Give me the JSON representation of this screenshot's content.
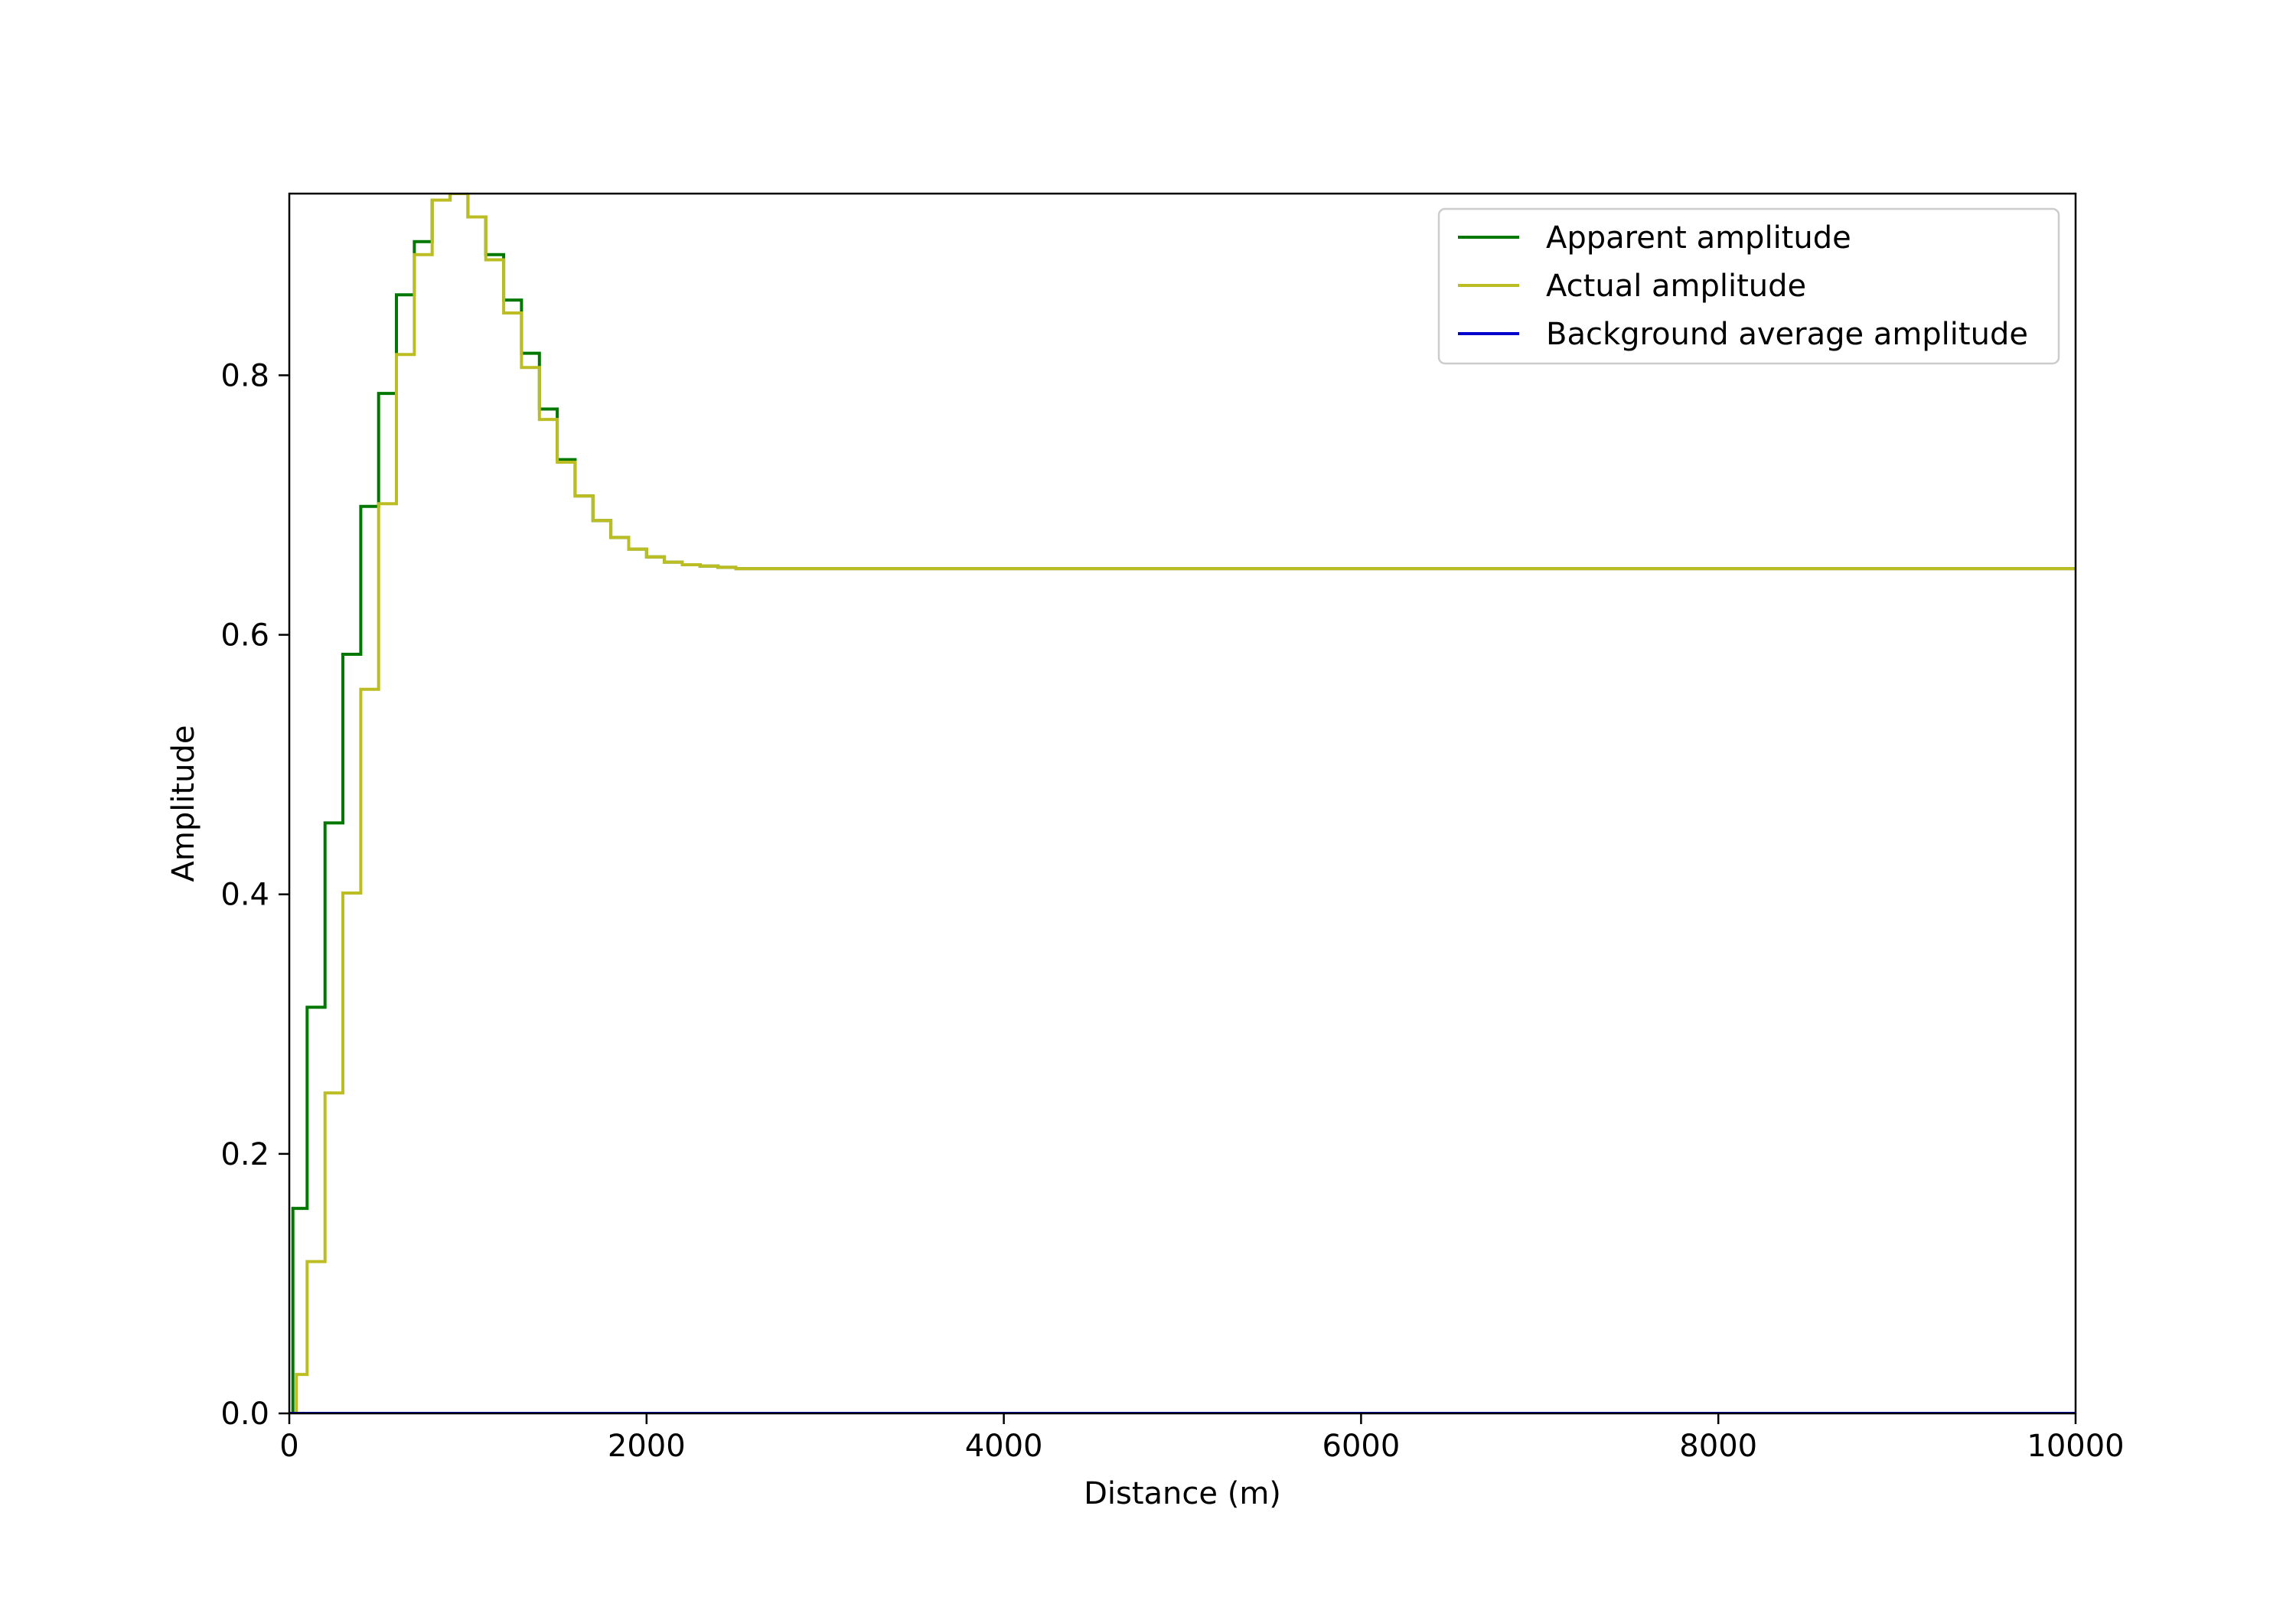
{
  "chart_data": {
    "type": "line",
    "xlabel": "Distance (m)",
    "ylabel": "Amplitude",
    "xlim": [
      0,
      10000
    ],
    "ylim": [
      0,
      0.94
    ],
    "xticks": [
      0,
      2000,
      4000,
      6000,
      8000,
      10000
    ],
    "yticks": [
      0.0,
      0.2,
      0.4,
      0.6,
      0.8
    ],
    "xtick_labels": [
      "0",
      "2000",
      "4000",
      "6000",
      "8000",
      "10000"
    ],
    "ytick_labels": [
      "0.0",
      "0.2",
      "0.4",
      "0.6",
      "0.8"
    ],
    "grid": false,
    "legend_position": "top-right",
    "step": "post",
    "series": [
      {
        "name": "Apparent amplitude",
        "color": "#007800",
        "x": [
          0,
          20,
          100,
          200,
          300,
          400,
          500,
          600,
          700,
          800,
          900,
          1000,
          1100,
          1200,
          1300,
          1400,
          1500,
          1600,
          1700,
          1800,
          1900,
          2000,
          2100,
          2200,
          2300,
          2400,
          2500,
          2600,
          2800,
          3000,
          10000
        ],
        "y": [
          0.0,
          0.158,
          0.313,
          0.455,
          0.585,
          0.699,
          0.786,
          0.862,
          0.903,
          0.935,
          0.94,
          0.922,
          0.893,
          0.858,
          0.817,
          0.774,
          0.735,
          0.707,
          0.688,
          0.675,
          0.666,
          0.66,
          0.656,
          0.654,
          0.653,
          0.652,
          0.651,
          0.651,
          0.651,
          0.651,
          0.651
        ]
      },
      {
        "name": "Actual amplitude",
        "color": "#bcbd22",
        "x": [
          0,
          40,
          100,
          200,
          300,
          400,
          500,
          600,
          700,
          800,
          900,
          1000,
          1100,
          1200,
          1300,
          1400,
          1500,
          1600,
          1700,
          1800,
          1900,
          2000,
          2100,
          2200,
          2300,
          2400,
          2500,
          2600,
          2800,
          3000,
          10000
        ],
        "y": [
          0.0,
          0.03,
          0.117,
          0.247,
          0.401,
          0.558,
          0.701,
          0.816,
          0.893,
          0.935,
          0.94,
          0.922,
          0.889,
          0.848,
          0.806,
          0.766,
          0.733,
          0.707,
          0.688,
          0.675,
          0.666,
          0.66,
          0.656,
          0.654,
          0.653,
          0.652,
          0.651,
          0.651,
          0.651,
          0.651,
          0.651
        ]
      },
      {
        "name": "Background average amplitude",
        "color": "#0000cc",
        "x": [
          0,
          10000
        ],
        "y": [
          0.0,
          0.0
        ]
      }
    ]
  }
}
